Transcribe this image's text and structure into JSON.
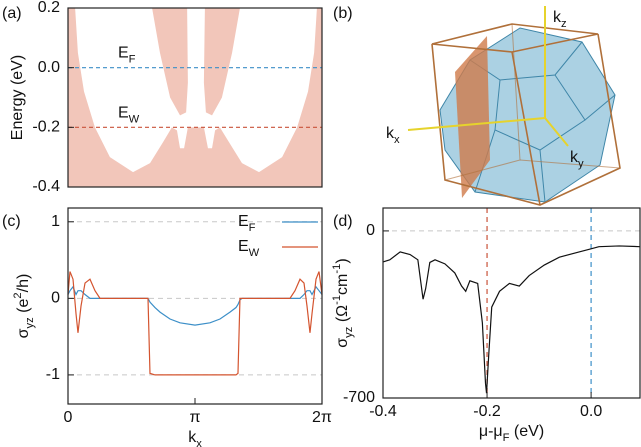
{
  "chart_data": [
    {
      "type": "band",
      "panel_label": "(a)",
      "ylabel": [
        {
          "text": "Energy (eV)"
        }
      ],
      "xlim": [
        0,
        1
      ],
      "ylim": [
        -0.4,
        0.2
      ],
      "yticks": [
        -0.4,
        -0.2,
        {
          "value": 0,
          "label": "0.0"
        },
        0.2
      ],
      "fill_color": "#f2c6ba",
      "gap_region": {
        "x": [
          0.028,
          0.039,
          0.063,
          0.106,
          0.165,
          0.256,
          0.323,
          0.374,
          0.409,
          0.429,
          0.441,
          0.457,
          0.472,
          0.535,
          0.551,
          0.567,
          0.579,
          0.598,
          0.634,
          0.685,
          0.752,
          0.843,
          0.902,
          0.945,
          0.969,
          0.98,
          0.677,
          0.646,
          0.606,
          0.567,
          0.543,
          0.535,
          0.539,
          0.469,
          0.472,
          0.465,
          0.441,
          0.402,
          0.362,
          0.331
        ],
        "y": [
          0.2,
          0.05,
          -0.08,
          -0.2,
          -0.3,
          -0.35,
          -0.32,
          -0.25,
          -0.2,
          -0.21,
          -0.27,
          -0.27,
          -0.2,
          -0.2,
          -0.27,
          -0.27,
          -0.21,
          -0.2,
          -0.25,
          -0.32,
          -0.35,
          -0.3,
          -0.2,
          -0.08,
          0.05,
          0.2,
          0.2,
          0.05,
          -0.1,
          -0.16,
          -0.15,
          -0.05,
          0.2,
          0.2,
          -0.05,
          -0.15,
          -0.16,
          -0.1,
          0.05,
          0.2
        ]
      },
      "levels": [
        {
          "value": 0,
          "color": "#3c8fc8",
          "label": [
            {
              "text": "E"
            },
            {
              "text": "F",
              "shift": "sub"
            }
          ]
        },
        {
          "value": -0.2,
          "color": "#c9533a",
          "label": [
            {
              "text": "E"
            },
            {
              "text": "W",
              "shift": "sub"
            }
          ]
        }
      ]
    },
    {
      "type": "line",
      "panel_label": "(c)",
      "ylabel": [
        {
          "text": "σ"
        },
        {
          "text": "yz",
          "shift": "sub"
        },
        {
          "text": " (e"
        },
        {
          "text": "2",
          "shift": "super"
        },
        {
          "text": "/h)"
        }
      ],
      "xlabel": [
        {
          "text": "k"
        },
        {
          "text": "x",
          "shift": "sub"
        }
      ],
      "xlim": [
        0,
        6.28318
      ],
      "ylim": [
        -1.38,
        1.18
      ],
      "xticks": [
        0,
        {
          "value": 3.14159,
          "label": "π"
        },
        {
          "value": 6.28318,
          "label": "2π"
        }
      ],
      "yticks": [
        -1,
        0,
        1
      ],
      "grid": true,
      "x": [
        0,
        0.049,
        0.124,
        0.198,
        0.247,
        0.322,
        0.421,
        0.544,
        0.668,
        0.792,
        1.039,
        1.781,
        1.93,
        1.979,
        2.028,
        2.152,
        2.276,
        2.523,
        2.771,
        3.142,
        3.512,
        3.76,
        4.007,
        4.156,
        4.205,
        4.254,
        4.304,
        4.502,
        5.244,
        5.491,
        5.615,
        5.739,
        5.838,
        5.912,
        5.986,
        6.036,
        6.135,
        6.209,
        6.283
      ],
      "series": [
        {
          "name": [
            {
              "text": "E"
            },
            {
              "text": "F",
              "shift": "sub"
            }
          ],
          "color": "#3c8fc8",
          "values": [
            0.05,
            0.1,
            0.15,
            0.05,
            0.1,
            0.1,
            0.05,
            0,
            0,
            0,
            0,
            0,
            0,
            0,
            -0.05,
            -0.12,
            -0.18,
            -0.27,
            -0.32,
            -0.35,
            -0.32,
            -0.27,
            -0.18,
            -0.12,
            -0.08,
            -0.02,
            0,
            0,
            0,
            0,
            0,
            0,
            0.05,
            0.1,
            0.1,
            0.05,
            0.15,
            0.1,
            0.05
          ]
        },
        {
          "name": [
            {
              "text": "E"
            },
            {
              "text": "W",
              "shift": "sub"
            }
          ],
          "color": "#d4542f",
          "values": [
            0.05,
            0.35,
            0.25,
            -0.2,
            -0.45,
            -0.1,
            0.2,
            0.25,
            0.1,
            0,
            0,
            0,
            0,
            0,
            -0.98,
            -1,
            -1,
            -1,
            -1,
            -1,
            -1,
            -1,
            -1,
            -1,
            -0.98,
            0,
            0,
            0,
            0,
            0,
            0.1,
            0.25,
            0.2,
            -0.1,
            -0.45,
            -0.2,
            0.25,
            0.35,
            0.05
          ]
        }
      ]
    },
    {
      "type": "line",
      "panel_label": "(d)",
      "ylabel": [
        {
          "text": "σ"
        },
        {
          "text": "yz",
          "shift": "sub"
        },
        {
          "text": " (Ω"
        },
        {
          "text": "-1",
          "shift": "super"
        },
        {
          "text": "cm"
        },
        {
          "text": "-1",
          "shift": "super"
        },
        {
          "text": ")"
        }
      ],
      "xlabel": [
        {
          "text": "μ-μ"
        },
        {
          "text": "F",
          "shift": "sub"
        },
        {
          "text": " (eV)"
        }
      ],
      "xlim": [
        -0.4,
        0.094
      ],
      "ylim": [
        -700,
        96
      ],
      "xticks": [
        -0.4,
        -0.2,
        {
          "value": 0,
          "label": "0.0"
        }
      ],
      "yticks": [
        -700,
        0
      ],
      "grid": true,
      "markers": [
        {
          "value": -0.2,
          "color": "#c9533a"
        },
        {
          "value": 0,
          "color": "#3c8fc8"
        }
      ],
      "x": [
        -0.4,
        -0.387,
        -0.367,
        -0.348,
        -0.333,
        -0.323,
        -0.318,
        -0.31,
        -0.3,
        -0.281,
        -0.262,
        -0.249,
        -0.241,
        -0.233,
        -0.218,
        -0.209,
        -0.203,
        -0.201,
        -0.197,
        -0.191,
        -0.176,
        -0.157,
        -0.138,
        -0.119,
        -0.09,
        -0.061,
        -0.023,
        0,
        0.015,
        0.054,
        0.094
      ],
      "series": [
        {
          "color": "#111111",
          "values": [
            -130,
            -121,
            -88,
            -99,
            -121,
            -286,
            -242,
            -132,
            -121,
            -138,
            -176,
            -231,
            -253,
            -209,
            -220,
            -385,
            -638,
            -680,
            -528,
            -319,
            -253,
            -220,
            -231,
            -187,
            -143,
            -110,
            -88,
            -75,
            -66,
            -63,
            -66
          ]
        }
      ]
    }
  ],
  "panel_b": {
    "label": "(b)",
    "axes": [
      [
        {
          "text": "k"
        },
        {
          "text": "z",
          "shift": "sub"
        }
      ],
      [
        {
          "text": "k"
        },
        {
          "text": "x",
          "shift": "sub"
        }
      ],
      [
        {
          "text": "k"
        },
        {
          "text": "y",
          "shift": "sub"
        }
      ]
    ]
  }
}
